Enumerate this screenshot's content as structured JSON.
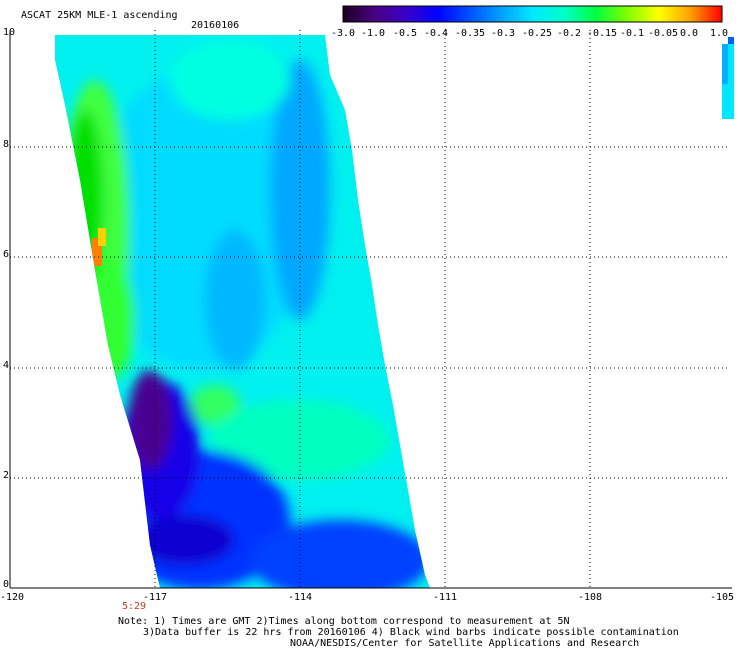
{
  "header": {
    "title": "ASCAT 25KM MLE-1 ascending",
    "date": "20160106"
  },
  "colorbar": {
    "labels": [
      "-3.0",
      "-1.0",
      "-0.5",
      "-0.4",
      "-0.35",
      "-0.3",
      "-0.25",
      "-0.2",
      "-0.15",
      "-0.1",
      "-0.05",
      "0.0",
      "1.0"
    ],
    "colors": [
      "#1a0020",
      "#4b0082",
      "#3a00c8",
      "#0000ff",
      "#0050ff",
      "#00a0ff",
      "#00e8ff",
      "#00ffc8",
      "#00ff40",
      "#80ff00",
      "#ffff00",
      "#ffa000",
      "#ff0000"
    ]
  },
  "axes": {
    "x_ticks": [
      "-120",
      "-117",
      "-114",
      "-111",
      "-108",
      "-105"
    ],
    "y_ticks": [
      "0",
      "2",
      "4",
      "6",
      "8",
      "10"
    ],
    "time_label": "5:29"
  },
  "notes": {
    "line1": "Note: 1) Times are GMT 2)Times along bottom correspond to measurement at 5N",
    "line2": "3)Data buffer is 22 hrs from 20160106 4) Black wind barbs indicate possible contamination",
    "line3": "NOAA/NESDIS/Center for Satellite Applications and Research"
  }
}
